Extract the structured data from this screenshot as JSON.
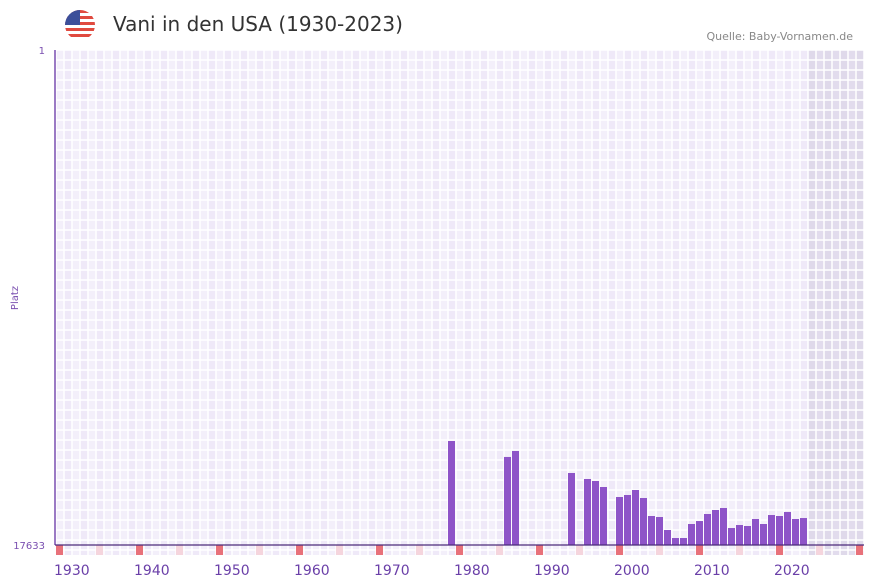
{
  "header": {
    "title": "Vani in den USA (1930-2023)",
    "source": "Quelle: Baby-Vornamen.de",
    "flag_icon": "us-flag-icon"
  },
  "chart_data": {
    "type": "bar",
    "title": "Vani in den USA (1930-2023)",
    "xlabel": "",
    "ylabel": "Platz",
    "y_tick_labels": [
      "1",
      "17633"
    ],
    "ylim": [
      17633,
      1
    ],
    "xlim": [
      1930,
      2030
    ],
    "x_tick_labels": [
      "1930",
      "1940",
      "1950",
      "1960",
      "1970",
      "1980",
      "1990",
      "2000",
      "2010",
      "2020"
    ],
    "data_range_end": 2023,
    "grid": true,
    "bar_color": "#8e54c8",
    "x": [
      1979,
      1986,
      1987,
      1994,
      1996,
      1997,
      1998,
      2000,
      2001,
      2002,
      2003,
      2004,
      2005,
      2006,
      2007,
      2008,
      2009,
      2010,
      2011,
      2012,
      2013,
      2014,
      2015,
      2016,
      2017,
      2018,
      2019,
      2020,
      2021,
      2022,
      2023
    ],
    "values": [
      13928,
      14497,
      14283,
      15068,
      15282,
      15353,
      15567,
      15923,
      15852,
      15674,
      15959,
      16600,
      16636,
      17099,
      17384,
      17384,
      16885,
      16779,
      16529,
      16386,
      16315,
      17028,
      16921,
      16956,
      16707,
      16885,
      16565,
      16600,
      16458,
      16707,
      16672
    ]
  }
}
